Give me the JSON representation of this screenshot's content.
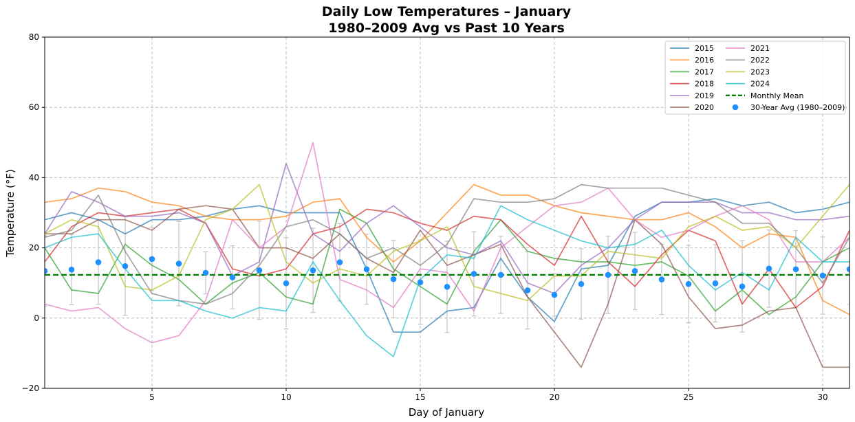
{
  "chart_data": {
    "type": "line",
    "title": "Daily Low Temperatures – January",
    "subtitle": "1980–2009 Avg vs Past 10 Years",
    "xlabel": "Day of January",
    "ylabel": "Temperature (°F)",
    "xlim": [
      1,
      31
    ],
    "ylim": [
      -20,
      80
    ],
    "x_ticks": [
      5,
      10,
      15,
      20,
      25,
      30
    ],
    "y_ticks": [
      -20,
      0,
      20,
      40,
      60,
      80
    ],
    "grid": true,
    "legend_position": "top-right",
    "x": [
      1,
      2,
      3,
      4,
      5,
      6,
      7,
      8,
      9,
      10,
      11,
      12,
      13,
      14,
      15,
      16,
      17,
      18,
      19,
      20,
      21,
      22,
      23,
      24,
      25,
      26,
      27,
      28,
      29,
      30,
      31
    ],
    "series": [
      {
        "name": "2015",
        "color": "#1f77b4",
        "values": [
          28,
          30,
          28,
          24,
          28,
          28,
          29,
          31,
          32,
          30,
          30,
          30,
          14,
          -4,
          -4,
          2,
          3,
          17,
          6,
          -1,
          14,
          15,
          29,
          33,
          33,
          34,
          32,
          33,
          30,
          31,
          33
        ]
      },
      {
        "name": "2016",
        "color": "#ff7f0e",
        "values": [
          33,
          34,
          37,
          36,
          33,
          32,
          29,
          28,
          28,
          29,
          33,
          34,
          23,
          16,
          22,
          30,
          38,
          35,
          35,
          32,
          30,
          29,
          28,
          28,
          30,
          26,
          20,
          24,
          23,
          5,
          1
        ]
      },
      {
        "name": "2017",
        "color": "#2ca02c",
        "values": [
          20,
          8,
          7,
          21,
          15,
          11,
          4,
          10,
          13,
          6,
          4,
          31,
          27,
          14,
          9,
          4,
          19,
          28,
          19,
          17,
          16,
          16,
          15,
          16,
          12,
          2,
          8,
          1,
          6,
          16,
          20
        ]
      },
      {
        "name": "2018",
        "color": "#d62728",
        "values": [
          16,
          26,
          30,
          29,
          30,
          31,
          27,
          14,
          12,
          14,
          24,
          26,
          31,
          30,
          27,
          25,
          29,
          28,
          21,
          15,
          29,
          16,
          9,
          18,
          25,
          22,
          4,
          14,
          3,
          9,
          25
        ]
      },
      {
        "name": "2019",
        "color": "#9467bd",
        "values": [
          24,
          36,
          33,
          29,
          29,
          30,
          27,
          12,
          16,
          44,
          24,
          19,
          27,
          32,
          26,
          20,
          18,
          22,
          10,
          7,
          15,
          20,
          28,
          33,
          33,
          33,
          30,
          30,
          28,
          28,
          29
        ]
      },
      {
        "name": "2020",
        "color": "#8c564b",
        "values": [
          24,
          24,
          28,
          28,
          25,
          31,
          32,
          31,
          20,
          20,
          17,
          24,
          17,
          13,
          25,
          15,
          18,
          21,
          6,
          -4,
          -14,
          4,
          28,
          21,
          6,
          -3,
          -2,
          2,
          3,
          -14,
          -14
        ]
      },
      {
        "name": "2021",
        "color": "#e377c2",
        "values": [
          4,
          2,
          3,
          -3,
          -7,
          -5,
          5,
          28,
          20,
          26,
          50,
          11,
          8,
          3,
          14,
          13,
          2,
          20,
          26,
          32,
          33,
          37,
          28,
          23,
          25,
          29,
          32,
          28,
          16,
          16,
          23
        ]
      },
      {
        "name": "2022",
        "color": "#7f7f7f",
        "values": [
          23,
          25,
          35,
          19,
          7,
          5,
          4,
          7,
          15,
          26,
          28,
          24,
          17,
          20,
          15,
          21,
          34,
          33,
          33,
          34,
          38,
          37,
          37,
          37,
          35,
          33,
          27,
          27,
          20,
          10,
          23
        ]
      },
      {
        "name": "2023",
        "color": "#bcbd22",
        "values": [
          24,
          28,
          26,
          9,
          8,
          12,
          28,
          31,
          38,
          16,
          10,
          14,
          12,
          19,
          22,
          26,
          9,
          7,
          5,
          12,
          12,
          19,
          18,
          17,
          26,
          29,
          25,
          26,
          20,
          29,
          38
        ]
      },
      {
        "name": "2024",
        "color": "#17becf",
        "values": [
          20,
          23,
          24,
          14,
          5,
          5,
          2,
          0,
          3,
          2,
          16,
          5,
          -5,
          -11,
          11,
          18,
          17,
          32,
          28,
          25,
          22,
          20,
          21,
          25,
          15,
          8,
          13,
          8,
          23,
          16,
          16
        ]
      }
    ],
    "mean_line": {
      "name": "Monthly Mean",
      "color": "#008000",
      "value": 12.3
    },
    "avg_points": {
      "name": "30-Year Avg (1980–2009)",
      "color": "#1e90ff",
      "values": [
        13.4,
        13.8,
        15.9,
        14.8,
        16.8,
        15.5,
        12.9,
        11.6,
        13.6,
        9.9,
        13.6,
        15.9,
        13.9,
        11.1,
        10.2,
        8.9,
        12.6,
        12.3,
        7.9,
        6.6,
        9.7,
        12.3,
        13.4,
        11.0,
        9.7,
        9.9,
        9.0,
        14.1,
        13.9,
        12.1,
        13.9
      ],
      "errors": [
        10,
        10,
        12,
        14,
        9,
        12,
        6,
        9,
        14,
        13,
        12,
        11,
        10,
        11,
        12,
        13,
        12,
        11,
        11,
        6,
        10,
        11,
        11,
        10,
        11,
        11,
        13,
        11,
        11,
        11,
        10
      ]
    }
  }
}
